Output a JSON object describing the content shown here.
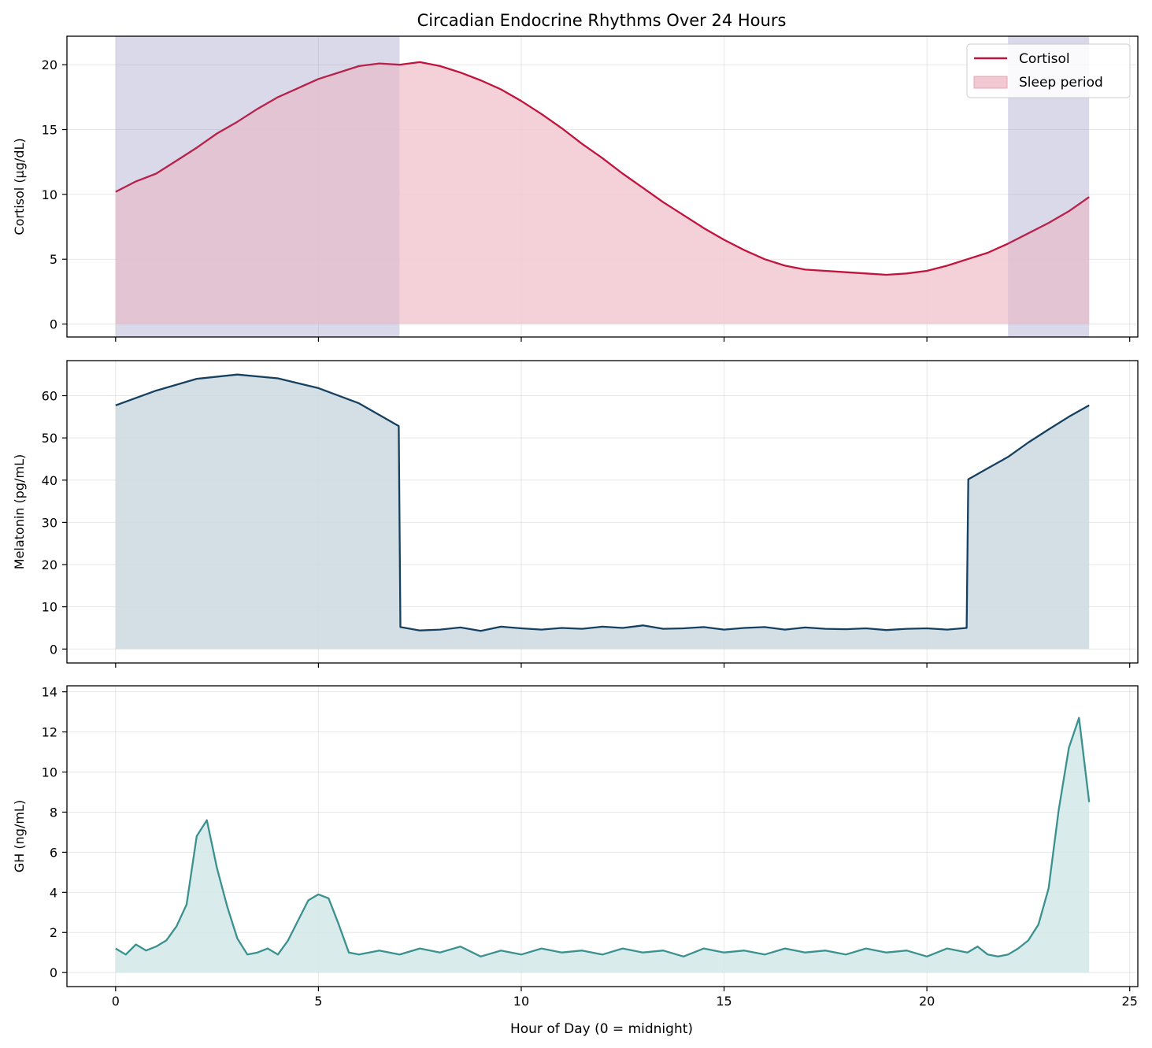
{
  "figure": {
    "title": "Circadian Endocrine Rhythms Over 24 Hours",
    "xlabel": "Hour of Day (0 = midnight)"
  },
  "colors": {
    "cortisol": "#c0143c",
    "cortisol_fill": "#f2c9d2",
    "melatonin": "#16405f",
    "melatonin_fill": "#cdd9e0",
    "gh": "#3a9190",
    "gh_fill": "#d2e8e7",
    "sleep": "#e4e4f1"
  },
  "chart_data": [
    {
      "type": "area",
      "ylabel": "Cortisol (μg/dL)",
      "xlim": [
        -1.2,
        25.2
      ],
      "ylim": [
        -1,
        22.2
      ],
      "xticks": [
        0,
        5,
        10,
        15,
        20,
        25
      ],
      "yticks": [
        0,
        5,
        10,
        15,
        20
      ],
      "grid": true,
      "legend": {
        "placement": "top-right",
        "entries": [
          "Cortisol",
          "Sleep period"
        ]
      },
      "shaded_spans": [
        {
          "label": "Sleep period",
          "ranges": [
            [
              0,
              7
            ],
            [
              22,
              24
            ]
          ]
        }
      ],
      "series": [
        {
          "name": "Cortisol",
          "x": [
            0,
            0.5,
            1,
            1.5,
            2,
            2.5,
            3,
            3.5,
            4,
            4.5,
            5,
            5.5,
            6,
            6.5,
            7,
            7.5,
            8,
            8.5,
            9,
            9.5,
            10,
            10.5,
            11,
            11.5,
            12,
            12.5,
            13,
            13.5,
            14,
            14.5,
            15,
            15.5,
            16,
            16.5,
            17,
            17.5,
            18,
            18.5,
            19,
            19.5,
            20,
            20.5,
            21,
            21.5,
            22,
            22.5,
            23,
            23.5,
            24
          ],
          "values": [
            10.2,
            11.0,
            11.6,
            12.6,
            13.6,
            14.7,
            15.6,
            16.6,
            17.5,
            18.2,
            18.9,
            19.4,
            19.9,
            20.1,
            20.0,
            20.2,
            19.9,
            19.4,
            18.8,
            18.1,
            17.2,
            16.2,
            15.1,
            13.9,
            12.8,
            11.6,
            10.5,
            9.4,
            8.4,
            7.4,
            6.5,
            5.7,
            5.0,
            4.5,
            4.2,
            4.1,
            4.0,
            3.9,
            3.8,
            3.9,
            4.1,
            4.5,
            5.0,
            5.5,
            6.2,
            7.0,
            7.8,
            8.7,
            9.8
          ]
        }
      ]
    },
    {
      "type": "area",
      "ylabel": "Melatonin (pg/mL)",
      "xlim": [
        -1.2,
        25.2
      ],
      "ylim": [
        -3.3,
        68.3
      ],
      "xticks": [
        0,
        5,
        10,
        15,
        20,
        25
      ],
      "yticks": [
        0,
        10,
        20,
        30,
        40,
        50,
        60
      ],
      "grid": true,
      "series": [
        {
          "name": "Melatonin",
          "x": [
            0,
            1,
            2,
            3,
            4,
            5,
            6,
            6.98,
            7.02,
            7.5,
            8,
            8.5,
            9,
            9.5,
            10,
            10.5,
            11,
            11.5,
            12,
            12.5,
            13,
            13.5,
            14,
            14.5,
            15,
            15.5,
            16,
            16.5,
            17,
            17.5,
            18,
            18.5,
            19,
            19.5,
            20,
            20.5,
            20.98,
            21.02,
            21.5,
            22,
            22.5,
            23,
            23.5,
            24
          ],
          "values": [
            57.7,
            61.2,
            64.0,
            65.0,
            64.1,
            61.8,
            58.2,
            52.8,
            5.2,
            4.4,
            4.6,
            5.1,
            4.3,
            5.3,
            4.9,
            4.6,
            5.0,
            4.8,
            5.3,
            5.0,
            5.6,
            4.8,
            4.9,
            5.2,
            4.6,
            5.0,
            5.2,
            4.6,
            5.1,
            4.8,
            4.7,
            4.9,
            4.5,
            4.8,
            4.9,
            4.6,
            5.0,
            40.2,
            42.8,
            45.5,
            48.9,
            52.0,
            55.0,
            57.7
          ]
        }
      ]
    },
    {
      "type": "area",
      "ylabel": "GH (ng/mL)",
      "xlim": [
        -1.2,
        25.2
      ],
      "ylim": [
        -0.7,
        14.3
      ],
      "xticks": [
        0,
        5,
        10,
        15,
        20,
        25
      ],
      "xticklabels": [
        "0",
        "5",
        "10",
        "15",
        "20",
        "25"
      ],
      "yticks": [
        0,
        2,
        4,
        6,
        8,
        10,
        12,
        14
      ],
      "grid": true,
      "series": [
        {
          "name": "GH",
          "x": [
            0,
            0.25,
            0.5,
            0.75,
            1,
            1.25,
            1.5,
            1.75,
            2,
            2.25,
            2.5,
            2.75,
            3,
            3.25,
            3.5,
            3.75,
            4,
            4.25,
            4.5,
            4.75,
            5,
            5.25,
            5.5,
            5.75,
            6,
            6.5,
            7,
            7.5,
            8,
            8.5,
            9,
            9.5,
            10,
            10.5,
            11,
            11.5,
            12,
            12.5,
            13,
            13.5,
            14,
            14.5,
            15,
            15.5,
            16,
            16.5,
            17,
            17.5,
            18,
            18.5,
            19,
            19.5,
            20,
            20.5,
            21,
            21.25,
            21.5,
            21.75,
            22,
            22.25,
            22.5,
            22.75,
            23,
            23.25,
            23.5,
            23.75,
            24
          ],
          "values": [
            1.2,
            0.9,
            1.4,
            1.1,
            1.3,
            1.6,
            2.3,
            3.4,
            6.8,
            7.6,
            5.2,
            3.3,
            1.7,
            0.9,
            1.0,
            1.2,
            0.9,
            1.6,
            2.6,
            3.6,
            3.9,
            3.7,
            2.4,
            1.0,
            0.9,
            1.1,
            0.9,
            1.2,
            1.0,
            1.3,
            0.8,
            1.1,
            0.9,
            1.2,
            1.0,
            1.1,
            0.9,
            1.2,
            1.0,
            1.1,
            0.8,
            1.2,
            1.0,
            1.1,
            0.9,
            1.2,
            1.0,
            1.1,
            0.9,
            1.2,
            1.0,
            1.1,
            0.8,
            1.2,
            1.0,
            1.3,
            0.9,
            0.8,
            0.9,
            1.2,
            1.6,
            2.4,
            4.2,
            8.1,
            11.2,
            12.7,
            8.5
          ]
        }
      ]
    }
  ]
}
